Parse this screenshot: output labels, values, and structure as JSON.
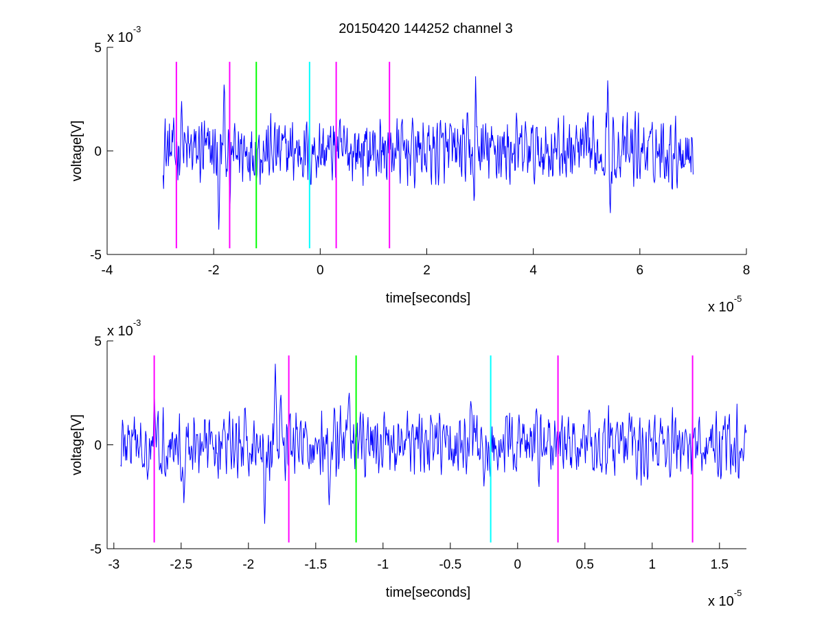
{
  "figure": {
    "title": "20150420 144252 channel 3"
  },
  "colors": {
    "background": "#ffffff",
    "signal": "#0000ff",
    "marker_magenta": "#ff00ff",
    "marker_green": "#00ff00",
    "marker_cyan": "#00ffff",
    "axes": "#000000"
  },
  "chart_data": [
    {
      "type": "line",
      "title": "20150420 144252 channel 3",
      "xlabel": "time[seconds]",
      "ylabel": "voltage[V]",
      "x_multiplier": "x 10",
      "x_multiplier_exp": "-5",
      "y_multiplier": "x 10",
      "y_multiplier_exp": "-3",
      "xlim": [
        -4e-05,
        8e-05
      ],
      "ylim": [
        -0.005,
        0.005
      ],
      "x_ticks": [
        -4e-05,
        -2e-05,
        0,
        2e-05,
        4e-05,
        6e-05,
        8e-05
      ],
      "x_tick_labels": [
        "-4",
        "-2",
        "0",
        "2",
        "4",
        "6",
        "8"
      ],
      "y_ticks": [
        -0.005,
        0,
        0.005
      ],
      "y_tick_labels": [
        "-5",
        "0",
        "5"
      ],
      "grid": false,
      "series": [
        {
          "color": "#0000ff",
          "x_range": [
            -2.95e-05,
            7e-05
          ],
          "y_range": [
            -0.0042,
            0.0036
          ],
          "y_rms": 0.0008,
          "peaks": [
            {
              "x": -1.9e-05,
              "y": -0.0038
            },
            {
              "x": -1.8e-05,
              "y": 0.0032
            },
            {
              "x": -1.7e-05,
              "y": -0.0028
            },
            {
              "x": -2.6e-05,
              "y": 0.0024
            },
            {
              "x": 2.9e-05,
              "y": -0.0042
            },
            {
              "x": 2.92e-05,
              "y": 0.0036
            },
            {
              "x": 5.4e-05,
              "y": 0.0034
            },
            {
              "x": 5.45e-05,
              "y": -0.003
            }
          ]
        }
      ],
      "markers": [
        {
          "x": -2.7e-05,
          "color": "#ff00ff",
          "y_range": [
            -0.0047,
            0.0043
          ]
        },
        {
          "x": -1.7e-05,
          "color": "#ff00ff",
          "y_range": [
            -0.0047,
            0.0043
          ]
        },
        {
          "x": -1.2e-05,
          "color": "#00ff00",
          "y_range": [
            -0.0047,
            0.0043
          ]
        },
        {
          "x": -2e-06,
          "color": "#00ffff",
          "y_range": [
            -0.0047,
            0.0043
          ]
        },
        {
          "x": 3e-06,
          "color": "#ff00ff",
          "y_range": [
            -0.0047,
            0.0043
          ]
        },
        {
          "x": 1.3e-05,
          "color": "#ff00ff",
          "y_range": [
            -0.0047,
            0.0043
          ]
        }
      ]
    },
    {
      "type": "line",
      "title": "",
      "xlabel": "time[seconds]",
      "ylabel": "voltage[V]",
      "x_multiplier": "x 10",
      "x_multiplier_exp": "-5",
      "y_multiplier": "x 10",
      "y_multiplier_exp": "-3",
      "xlim": [
        -3.05e-05,
        1.7e-05
      ],
      "ylim": [
        -0.005,
        0.005
      ],
      "x_ticks": [
        -3e-05,
        -2.5e-05,
        -2e-05,
        -1.5e-05,
        -1e-05,
        -5e-06,
        0,
        5e-06,
        1e-05,
        1.5e-05
      ],
      "x_tick_labels": [
        "-3",
        "-2.5",
        "-2",
        "-1.5",
        "-1",
        "-0.5",
        "0",
        "0.5",
        "1",
        "1.5"
      ],
      "y_ticks": [
        -0.005,
        0,
        0.005
      ],
      "y_tick_labels": [
        "-5",
        "0",
        "5"
      ],
      "grid": false,
      "series": [
        {
          "color": "#0000ff",
          "x_range": [
            -2.95e-05,
            1.7e-05
          ],
          "y_range": [
            -0.0038,
            0.0039
          ],
          "y_rms": 0.0008,
          "peaks": [
            {
              "x": -2.7e-05,
              "y": 0.0024
            },
            {
              "x": -2.48e-05,
              "y": -0.0028
            },
            {
              "x": -1.88e-05,
              "y": -0.0038
            },
            {
              "x": -1.8e-05,
              "y": 0.0039
            },
            {
              "x": -1.76e-05,
              "y": 0.0024
            },
            {
              "x": -1.4e-05,
              "y": -0.0029
            },
            {
              "x": -1.25e-05,
              "y": 0.0025
            },
            {
              "x": -3.5e-06,
              "y": 0.0021
            },
            {
              "x": -2.5e-06,
              "y": -0.002
            }
          ]
        }
      ],
      "markers": [
        {
          "x": -2.7e-05,
          "color": "#ff00ff",
          "y_range": [
            -0.0047,
            0.0043
          ]
        },
        {
          "x": -1.7e-05,
          "color": "#ff00ff",
          "y_range": [
            -0.0047,
            0.0043
          ]
        },
        {
          "x": -1.2e-05,
          "color": "#00ff00",
          "y_range": [
            -0.0047,
            0.0043
          ]
        },
        {
          "x": -2e-06,
          "color": "#00ffff",
          "y_range": [
            -0.0047,
            0.0043
          ]
        },
        {
          "x": 3e-06,
          "color": "#ff00ff",
          "y_range": [
            -0.0047,
            0.0043
          ]
        },
        {
          "x": 1.3e-05,
          "color": "#ff00ff",
          "y_range": [
            -0.0047,
            0.0043
          ]
        }
      ]
    }
  ]
}
